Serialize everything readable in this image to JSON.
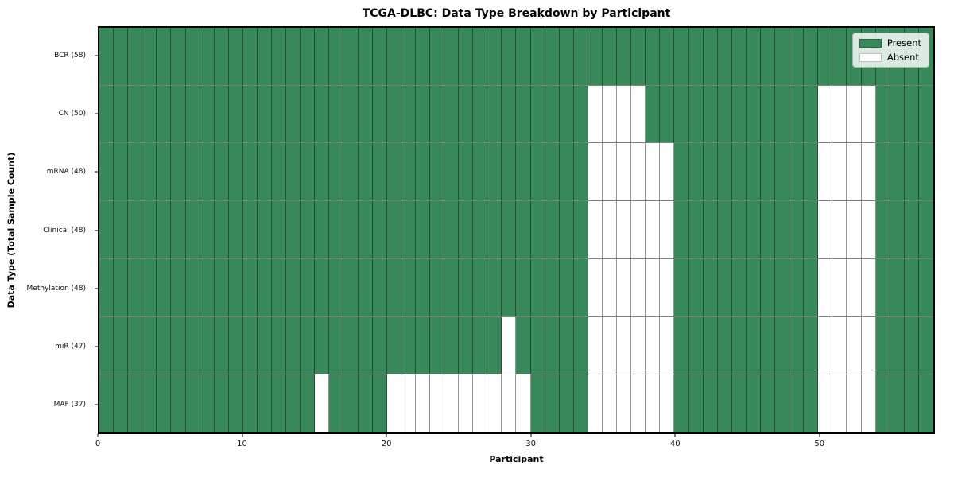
{
  "figure": {
    "title": "TCGA-DLBC: Data Type Breakdown by Participant",
    "xlabel": "Participant",
    "ylabel": "Data Type (Total Sample Count)"
  },
  "chart_data": {
    "type": "heatmap",
    "title": "TCGA-DLBC: Data Type Breakdown by Participant",
    "xlabel": "Participant",
    "ylabel": "Data Type (Total Sample Count)",
    "x_range": [
      0,
      58
    ],
    "n_participants": 58,
    "x_ticks": [
      0,
      10,
      20,
      30,
      40,
      50
    ],
    "grid": true,
    "legend_position": "upper right",
    "colors": {
      "present": "#38895a",
      "absent": "#ffffff",
      "gridline": "rgba(0,0,0,0.42)"
    },
    "legend": [
      {
        "label": "Present",
        "color": "#38895a"
      },
      {
        "label": "Absent",
        "color": "#ffffff"
      }
    ],
    "categories": [
      "BCR (58)",
      "CN (50)",
      "mRNA (48)",
      "Clinical (48)",
      "Methylation (48)",
      "miR (47)",
      "MAF (37)"
    ],
    "rows": [
      {
        "label": "BCR (58)",
        "data_type": "BCR",
        "present_count": 58,
        "absent_participants": []
      },
      {
        "label": "CN (50)",
        "data_type": "CN",
        "present_count": 50,
        "absent_participants": [
          34,
          35,
          36,
          37,
          50,
          51,
          52,
          53
        ]
      },
      {
        "label": "mRNA (48)",
        "data_type": "mRNA",
        "present_count": 48,
        "absent_participants": [
          34,
          35,
          36,
          37,
          38,
          39,
          50,
          51,
          52,
          53
        ]
      },
      {
        "label": "Clinical (48)",
        "data_type": "Clinical",
        "present_count": 48,
        "absent_participants": [
          34,
          35,
          36,
          37,
          38,
          39,
          50,
          51,
          52,
          53
        ]
      },
      {
        "label": "Methylation (48)",
        "data_type": "Methylation",
        "present_count": 48,
        "absent_participants": [
          34,
          35,
          36,
          37,
          38,
          39,
          50,
          51,
          52,
          53
        ]
      },
      {
        "label": "miR (47)",
        "data_type": "miR",
        "present_count": 47,
        "absent_participants": [
          28,
          34,
          35,
          36,
          37,
          38,
          39,
          50,
          51,
          52,
          53
        ]
      },
      {
        "label": "MAF (37)",
        "data_type": "MAF",
        "present_count": 37,
        "absent_participants": [
          15,
          20,
          21,
          22,
          23,
          24,
          25,
          26,
          27,
          28,
          29,
          34,
          35,
          36,
          37,
          38,
          39,
          50,
          51,
          52,
          53
        ]
      }
    ]
  }
}
